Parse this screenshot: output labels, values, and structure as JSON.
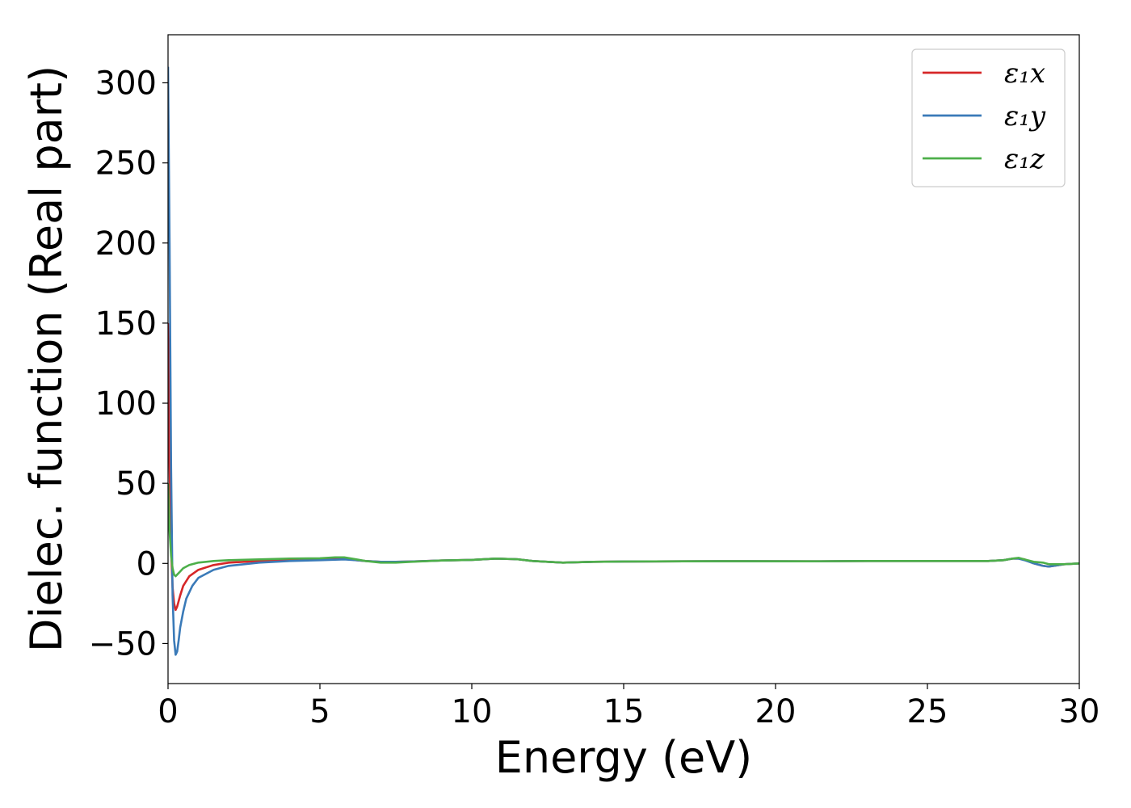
{
  "chart_data": {
    "type": "line",
    "xlabel": "Energy (eV)",
    "ylabel": "Dielec. function (Real part)",
    "xlim": [
      0,
      30
    ],
    "ylim": [
      -75,
      330
    ],
    "x_ticks": [
      0,
      5,
      10,
      15,
      20,
      25,
      30
    ],
    "x_tick_labels": [
      "0",
      "5",
      "10",
      "15",
      "20",
      "25",
      "30"
    ],
    "y_ticks": [
      -50,
      0,
      50,
      100,
      150,
      200,
      250,
      300
    ],
    "y_tick_labels": [
      "−50",
      "0",
      "50",
      "100",
      "150",
      "200",
      "250",
      "300"
    ],
    "grid": false,
    "legend_position": "top-right",
    "series": [
      {
        "name": "ε₁x",
        "color": "#d62728",
        "x": [
          0,
          0.05,
          0.1,
          0.15,
          0.2,
          0.25,
          0.3,
          0.4,
          0.5,
          0.7,
          1.0,
          1.5,
          2.0,
          3.0,
          4.0,
          5.0,
          5.8,
          6.2,
          6.5,
          7.0,
          7.5,
          8.0,
          9.0,
          10.0,
          10.8,
          11.5,
          12.0,
          13.0,
          14.0,
          15.0,
          17.0,
          19.0,
          21.0,
          23.0,
          25.0,
          27.0,
          27.5,
          27.8,
          28.0,
          28.2,
          28.5,
          28.8,
          29.0,
          29.5,
          30.0
        ],
        "y": [
          150,
          60,
          10,
          -15,
          -25,
          -29,
          -27,
          -20,
          -14,
          -8,
          -4,
          -1,
          0.5,
          1.5,
          2,
          2.5,
          3,
          2,
          1.5,
          1,
          1,
          1.2,
          1.8,
          2.2,
          3,
          2.6,
          1.5,
          0.5,
          1,
          1.2,
          1.3,
          1.4,
          1.3,
          1.5,
          1.5,
          1.5,
          2,
          3,
          3,
          2.5,
          0,
          -1.5,
          -2,
          -0.5,
          0
        ]
      },
      {
        "name": "ε₁y",
        "color": "#3a7ab8",
        "x": [
          0,
          0.05,
          0.1,
          0.15,
          0.2,
          0.25,
          0.3,
          0.35,
          0.4,
          0.5,
          0.6,
          0.8,
          1.0,
          1.5,
          2.0,
          3.0,
          4.0,
          5.0,
          5.8,
          6.2,
          6.5,
          7.0,
          7.5,
          8.0,
          9.0,
          10.0,
          10.8,
          11.5,
          12.0,
          13.0,
          14.0,
          15.0,
          17.0,
          19.0,
          21.0,
          23.0,
          25.0,
          27.0,
          27.5,
          27.8,
          28.0,
          28.2,
          28.5,
          28.8,
          29.0,
          29.5,
          30.0
        ],
        "y": [
          310,
          200,
          60,
          -20,
          -48,
          -57,
          -55,
          -48,
          -40,
          -30,
          -22,
          -14,
          -9,
          -4,
          -1.5,
          0.5,
          1.5,
          2,
          2.5,
          2,
          1.5,
          1,
          1,
          1.2,
          1.8,
          2.2,
          3,
          2.6,
          1.5,
          0.5,
          1,
          1.2,
          1.3,
          1.4,
          1.3,
          1.5,
          1.5,
          1.5,
          2,
          3,
          3,
          2,
          0,
          -1.5,
          -2,
          -0.5,
          0
        ]
      },
      {
        "name": "ε₁z",
        "color": "#4daf4a",
        "x": [
          0,
          0.05,
          0.1,
          0.15,
          0.2,
          0.25,
          0.3,
          0.4,
          0.5,
          0.7,
          1.0,
          1.5,
          2.0,
          3.0,
          4.0,
          5.0,
          5.5,
          5.8,
          6.2,
          6.5,
          7.0,
          7.5,
          8.0,
          9.0,
          10.0,
          10.8,
          11.5,
          12.0,
          13.0,
          14.0,
          15.0,
          17.0,
          19.0,
          21.0,
          23.0,
          25.0,
          27.0,
          27.5,
          27.8,
          28.0,
          28.2,
          28.5,
          28.8,
          29.0,
          29.5,
          30.0
        ],
        "y": [
          50,
          20,
          5,
          -3,
          -7,
          -8,
          -7,
          -5,
          -3,
          -1,
          0.5,
          1.5,
          2,
          2.5,
          3,
          3.2,
          3.8,
          3.8,
          2.5,
          1.5,
          0.5,
          0.5,
          1,
          1.8,
          2.2,
          3,
          2.6,
          1.5,
          0.5,
          1,
          1.2,
          1.3,
          1.4,
          1.3,
          1.5,
          1.5,
          1.5,
          2,
          3,
          3.5,
          2.5,
          1,
          0.5,
          -0.5,
          -0.5,
          0
        ]
      }
    ]
  }
}
